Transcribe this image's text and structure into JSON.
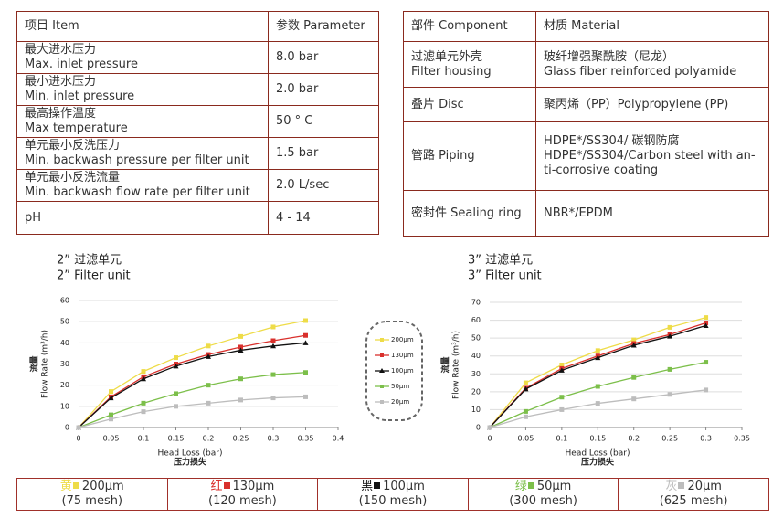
{
  "spec_table": {
    "headers": [
      "项目 Item",
      "参数 Parameter"
    ],
    "rows": [
      [
        "最大进水压力\nMax. inlet pressure",
        "8.0 bar"
      ],
      [
        "最小进水压力\nMin. inlet pressure",
        "2.0 bar"
      ],
      [
        "最高操作温度\nMax temperature",
        "50 ° C"
      ],
      [
        "单元最小反洗压力\nMin. backwash pressure per filter unit",
        "1.5 bar"
      ],
      [
        "单元最小反洗流量\nMin. backwash flow rate per filter unit",
        "2.0 L/sec"
      ],
      [
        "pH",
        "4 - 14"
      ]
    ]
  },
  "material_table": {
    "headers": [
      "部件 Component",
      "材质 Material"
    ],
    "rows": [
      [
        "过滤单元外壳\nFilter housing",
        "玻纤增强聚酰胺（尼龙）\nGlass fiber reinforced polyamide"
      ],
      [
        "叠片 Disc",
        "聚丙烯（PP）Polypropylene (PP)"
      ],
      [
        "管路 Piping",
        "HDPE*/SS304/ 碳钢防腐\nHDPE*/SS304/Carbon steel with an-\nti-corrosive coating"
      ],
      [
        "密封件 Sealing ring",
        "NBR*/EPDM"
      ]
    ]
  },
  "chart_data": [
    {
      "type": "line",
      "title": "2” 过滤单元",
      "subtitle": "2” Filter unit",
      "y_label_cn": "流量",
      "y_label": "Flow Rate (m³/h)",
      "x_label": "Head Loss (bar)",
      "x_label_cn": "压力损失",
      "x": [
        0,
        0.05,
        0.1,
        0.15,
        0.2,
        0.25,
        0.3,
        0.35
      ],
      "xlim": [
        0,
        0.4
      ],
      "xticks": [
        0,
        0.05,
        0.1,
        0.15,
        0.2,
        0.25,
        0.3,
        0.35,
        0.4
      ],
      "ylim": [
        0,
        60
      ],
      "yticks": [
        0,
        10,
        20,
        30,
        40,
        50,
        60
      ],
      "series": [
        {
          "name": "200μm",
          "color": "#eedc48",
          "marker": "square",
          "values": [
            0,
            17,
            26.5,
            33,
            38.5,
            43,
            47.5,
            50.5
          ]
        },
        {
          "name": "130μm",
          "color": "#d9302c",
          "marker": "square",
          "values": [
            0,
            14.5,
            24,
            30,
            34.5,
            38,
            41,
            43.5
          ]
        },
        {
          "name": "100μm",
          "color": "#111111",
          "marker": "triangle",
          "values": [
            0,
            14,
            23,
            29,
            33.5,
            36.5,
            38.5,
            40
          ]
        },
        {
          "name": "50μm",
          "color": "#7cbf4a",
          "marker": "square",
          "values": [
            0,
            6,
            11.5,
            16,
            20,
            23,
            25,
            26
          ]
        },
        {
          "name": "20μm",
          "color": "#bdbdbd",
          "marker": "square",
          "values": [
            0,
            4,
            7.5,
            10,
            11.5,
            13,
            14,
            14.5
          ]
        }
      ]
    },
    {
      "type": "line",
      "title": "3” 过滤单元",
      "subtitle": "3” Filter unit",
      "y_label_cn": "流量",
      "y_label": "Flow Rate (m³/h)",
      "x_label": "Head Loss (bar)",
      "x_label_cn": "压力损失",
      "x": [
        0,
        0.05,
        0.1,
        0.15,
        0.2,
        0.25,
        0.3
      ],
      "xlim": [
        0,
        0.35
      ],
      "xticks": [
        0,
        0.05,
        0.1,
        0.15,
        0.2,
        0.25,
        0.3,
        0.35
      ],
      "ylim": [
        0,
        70
      ],
      "yticks": [
        0,
        10,
        20,
        30,
        40,
        50,
        60,
        70
      ],
      "series": [
        {
          "color": "#eedc48",
          "marker": "square",
          "values": [
            0,
            25,
            35,
            43,
            49,
            56,
            61.5
          ]
        },
        {
          "color": "#d9302c",
          "marker": "square",
          "values": [
            0,
            22,
            33,
            40,
            47,
            52,
            58.5
          ]
        },
        {
          "color": "#111111",
          "marker": "triangle",
          "values": [
            0,
            21.5,
            32,
            39,
            46,
            51,
            57
          ]
        },
        {
          "color": "#7cbf4a",
          "marker": "square",
          "values": [
            0,
            9,
            17,
            23,
            28,
            32.5,
            36.5
          ]
        },
        {
          "color": "#bdbdbd",
          "marker": "square",
          "values": [
            0,
            6,
            10,
            13.5,
            16,
            18.5,
            21
          ]
        }
      ]
    }
  ],
  "mesh_legend": [
    {
      "color_name": "黄",
      "size": "200μm",
      "mesh": "(75 mesh)"
    },
    {
      "color_name": "红",
      "size": "130μm",
      "mesh": "(120 mesh)"
    },
    {
      "color_name": "黑",
      "size": "100μm",
      "mesh": "(150 mesh)"
    },
    {
      "color_name": "绿",
      "size": "50μm",
      "mesh": "(300 mesh)"
    },
    {
      "color_name": "灰",
      "size": "20μm",
      "mesh": "(625 mesh)"
    }
  ]
}
